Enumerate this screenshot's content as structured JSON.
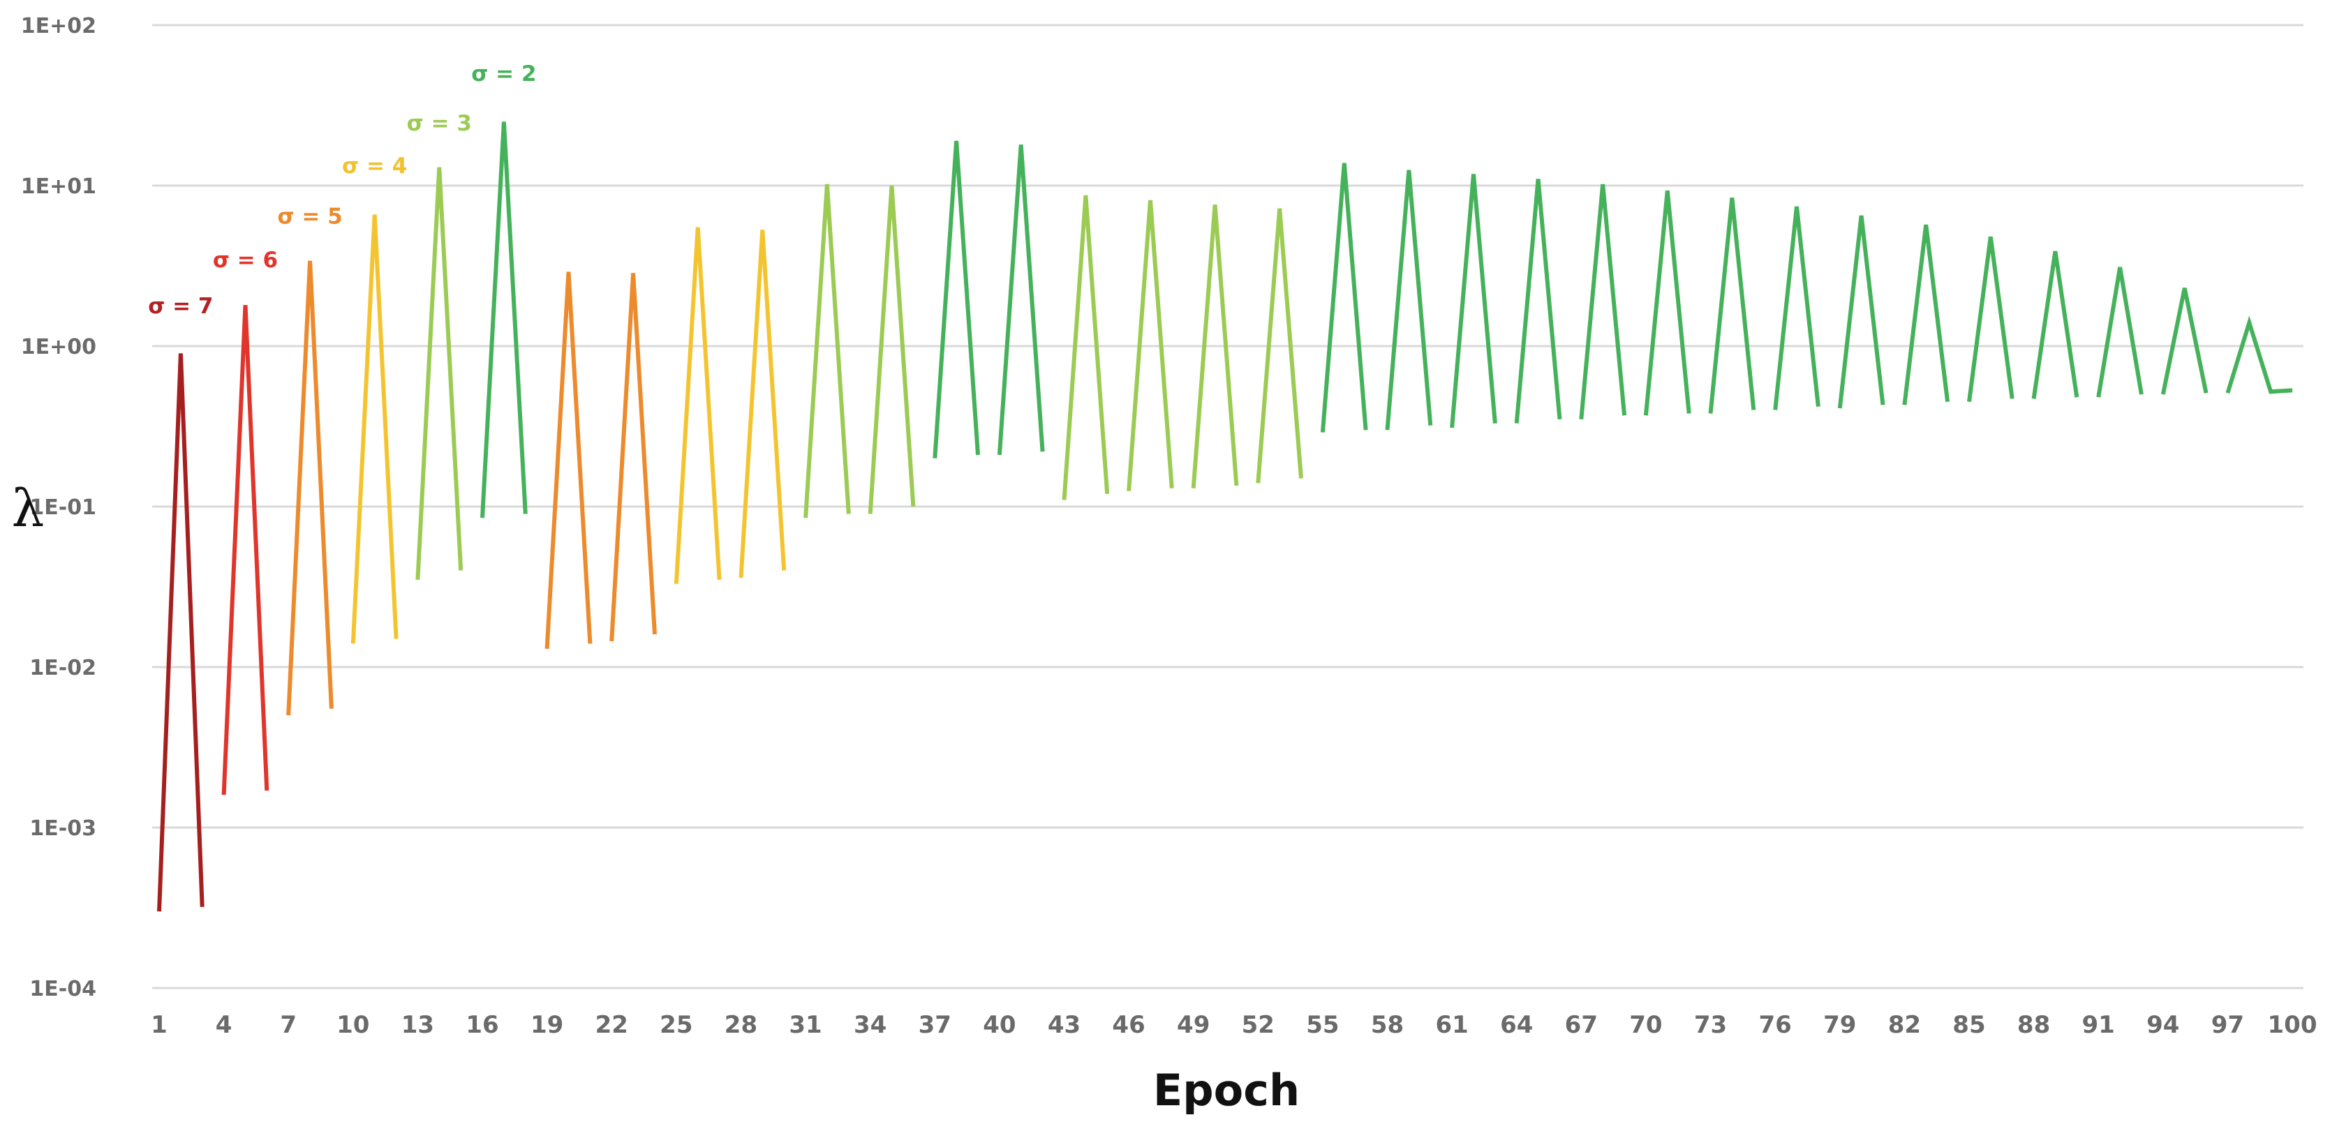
{
  "chart_data": {
    "type": "line",
    "title": "",
    "xlabel": "Epoch",
    "ylabel": "λ",
    "y_scale": "log",
    "ylim": [
      0.0001,
      100
    ],
    "xlim": [
      1,
      100
    ],
    "grid": true,
    "legend": "none",
    "y_ticks": [
      {
        "value": 100,
        "label": "1E+02"
      },
      {
        "value": 10,
        "label": "1E+01"
      },
      {
        "value": 1,
        "label": "1E+00"
      },
      {
        "value": 0.1,
        "label": "1E-01"
      },
      {
        "value": 0.01,
        "label": "1E-02"
      },
      {
        "value": 0.001,
        "label": "1E-03"
      },
      {
        "value": 0.0001,
        "label": "1E-04"
      }
    ],
    "x_ticks": [
      1,
      4,
      7,
      10,
      13,
      16,
      19,
      22,
      25,
      28,
      31,
      34,
      37,
      40,
      43,
      46,
      49,
      52,
      55,
      58,
      61,
      64,
      67,
      70,
      73,
      76,
      79,
      82,
      85,
      88,
      91,
      94,
      97,
      100
    ],
    "annotations": [
      {
        "text": "σ = 7",
        "x": 2,
        "y": 1.6,
        "color": "#b22222"
      },
      {
        "text": "σ = 6",
        "x": 5,
        "y": 3.1,
        "color": "#e0352b"
      },
      {
        "text": "σ = 5",
        "x": 8,
        "y": 5.8,
        "color": "#ec8a2c"
      },
      {
        "text": "σ = 4",
        "x": 11,
        "y": 12,
        "color": "#f2c12e"
      },
      {
        "text": "σ = 3",
        "x": 14,
        "y": 22,
        "color": "#9ccb54"
      },
      {
        "text": "σ = 2",
        "x": 17,
        "y": 45,
        "color": "#45b25b"
      }
    ],
    "series": [
      {
        "color": "#a61f1f",
        "x": [
          1,
          2,
          3
        ],
        "y": [
          0.0003,
          0.9,
          0.00032
        ]
      },
      {
        "color": "#e0352b",
        "x": [
          4,
          5,
          6
        ],
        "y": [
          0.0016,
          1.8,
          0.0017
        ]
      },
      {
        "color": "#ec8a2c",
        "x": [
          7,
          8,
          9
        ],
        "y": [
          0.005,
          3.4,
          0.0055
        ]
      },
      {
        "color": "#f4c430",
        "x": [
          10,
          11,
          12
        ],
        "y": [
          0.014,
          6.6,
          0.015
        ]
      },
      {
        "color": "#9ccb54",
        "x": [
          13,
          14,
          15
        ],
        "y": [
          0.035,
          13,
          0.04
        ]
      },
      {
        "color": "#45b25b",
        "x": [
          16,
          17,
          18
        ],
        "y": [
          0.085,
          25,
          0.09
        ]
      },
      {
        "color": "#ec8a2c",
        "x": [
          19,
          20,
          21
        ],
        "y": [
          0.013,
          2.9,
          0.014
        ]
      },
      {
        "color": "#ec8a2c",
        "x": [
          22,
          23,
          24
        ],
        "y": [
          0.0145,
          2.85,
          0.016
        ]
      },
      {
        "color": "#f4c430",
        "x": [
          25,
          26,
          27
        ],
        "y": [
          0.033,
          5.5,
          0.035
        ]
      },
      {
        "color": "#f4c430",
        "x": [
          28,
          29,
          30
        ],
        "y": [
          0.036,
          5.3,
          0.04
        ]
      },
      {
        "color": "#9ccb54",
        "x": [
          31,
          32,
          33
        ],
        "y": [
          0.085,
          10.2,
          0.09
        ]
      },
      {
        "color": "#9ccb54",
        "x": [
          34,
          35,
          36
        ],
        "y": [
          0.09,
          10,
          0.1
        ]
      },
      {
        "color": "#45b25b",
        "x": [
          37,
          38,
          39
        ],
        "y": [
          0.2,
          19,
          0.21
        ]
      },
      {
        "color": "#45b25b",
        "x": [
          40,
          41,
          42
        ],
        "y": [
          0.21,
          18,
          0.22
        ]
      },
      {
        "color": "#9ccb54",
        "x": [
          43,
          44,
          45
        ],
        "y": [
          0.11,
          8.7,
          0.12
        ]
      },
      {
        "color": "#9ccb54",
        "x": [
          46,
          47,
          48
        ],
        "y": [
          0.125,
          8.1,
          0.13
        ]
      },
      {
        "color": "#9ccb54",
        "x": [
          49,
          50,
          51
        ],
        "y": [
          0.13,
          7.6,
          0.135
        ]
      },
      {
        "color": "#9ccb54",
        "x": [
          52,
          53,
          54
        ],
        "y": [
          0.14,
          7.2,
          0.15
        ]
      },
      {
        "color": "#45b25b",
        "x": [
          55,
          56,
          57
        ],
        "y": [
          0.29,
          13.8,
          0.3
        ]
      },
      {
        "color": "#45b25b",
        "x": [
          58,
          59,
          60
        ],
        "y": [
          0.3,
          12.5,
          0.32
        ]
      },
      {
        "color": "#45b25b",
        "x": [
          61,
          62,
          63
        ],
        "y": [
          0.31,
          11.8,
          0.33
        ]
      },
      {
        "color": "#45b25b",
        "x": [
          64,
          65,
          66
        ],
        "y": [
          0.33,
          11,
          0.35
        ]
      },
      {
        "color": "#45b25b",
        "x": [
          67,
          68,
          69
        ],
        "y": [
          0.35,
          10.2,
          0.37
        ]
      },
      {
        "color": "#45b25b",
        "x": [
          70,
          71,
          72
        ],
        "y": [
          0.37,
          9.3,
          0.38
        ]
      },
      {
        "color": "#45b25b",
        "x": [
          73,
          74,
          75
        ],
        "y": [
          0.38,
          8.4,
          0.4
        ]
      },
      {
        "color": "#45b25b",
        "x": [
          76,
          77,
          78
        ],
        "y": [
          0.4,
          7.4,
          0.42
        ]
      },
      {
        "color": "#45b25b",
        "x": [
          79,
          80,
          81
        ],
        "y": [
          0.41,
          6.5,
          0.43
        ]
      },
      {
        "color": "#45b25b",
        "x": [
          82,
          83,
          84
        ],
        "y": [
          0.43,
          5.7,
          0.45
        ]
      },
      {
        "color": "#45b25b",
        "x": [
          85,
          86,
          87
        ],
        "y": [
          0.45,
          4.8,
          0.47
        ]
      },
      {
        "color": "#45b25b",
        "x": [
          88,
          89,
          90
        ],
        "y": [
          0.47,
          3.9,
          0.48
        ]
      },
      {
        "color": "#45b25b",
        "x": [
          91,
          92,
          93
        ],
        "y": [
          0.48,
          3.1,
          0.5
        ]
      },
      {
        "color": "#45b25b",
        "x": [
          94,
          95,
          96
        ],
        "y": [
          0.5,
          2.3,
          0.51
        ]
      },
      {
        "color": "#45b25b",
        "x": [
          97,
          98,
          99,
          100
        ],
        "y": [
          0.51,
          1.4,
          0.52,
          0.53
        ]
      }
    ]
  }
}
